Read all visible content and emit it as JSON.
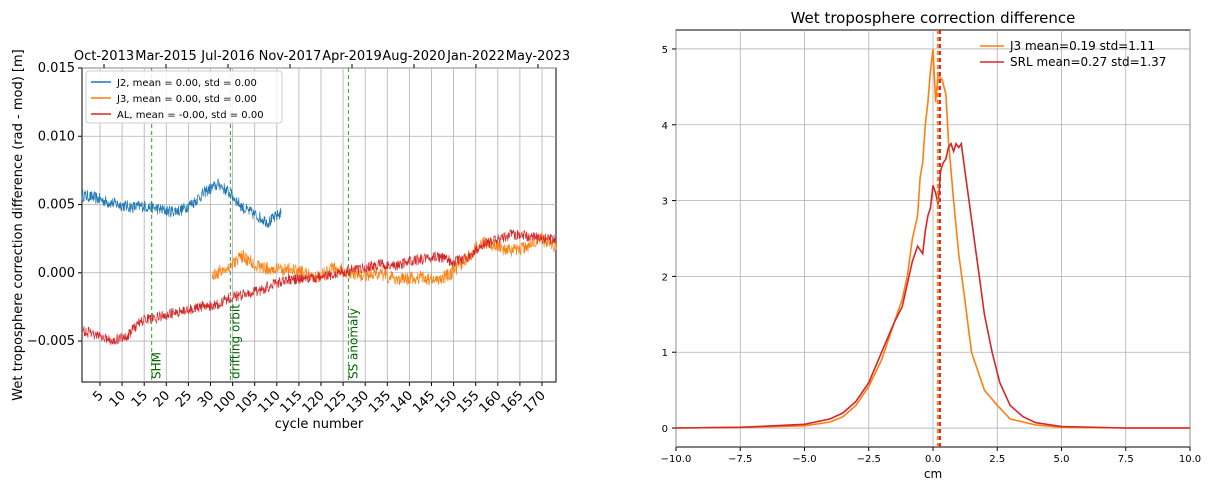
{
  "chart_data": [
    {
      "type": "line",
      "title": "",
      "ylabel": "Wet troposphere correction  difference (rad - mod) [m]",
      "xlabel": "cycle number",
      "ylim": [
        -0.008,
        0.015
      ],
      "grid": true,
      "legend_position": "upper-left",
      "yticks": [
        -0.005,
        0.0,
        0.005,
        0.01,
        0.015
      ],
      "ytick_labels": [
        "−0.005",
        "0.000",
        "0.005",
        "0.010",
        "0.015"
      ],
      "xtick_labels": [
        "5",
        "10",
        "15",
        "20",
        "25",
        "30",
        "100",
        "105",
        "110",
        "115",
        "120",
        "125",
        "130",
        "135",
        "140",
        "145",
        "150",
        "155",
        "160",
        "165",
        "170"
      ],
      "top_tick_labels": [
        "Oct-2013",
        "Mar-2015",
        "Jul-2016",
        "Nov-2017",
        "Apr-2019",
        "Aug-2020",
        "Jan-2022",
        "May-2023"
      ],
      "series": [
        {
          "name": "J2, mean = 0.00, std = 0.00",
          "color": "#1f77b4",
          "x_range": [
            0.0,
            0.42
          ],
          "values": [
            0.0057,
            0.0055,
            0.0052,
            0.005,
            0.0048,
            0.0049,
            0.0047,
            0.0045,
            0.0046,
            0.0052,
            0.006,
            0.0065,
            0.0057,
            0.0047,
            0.0042,
            0.0037,
            0.0044
          ]
        },
        {
          "name": "J3, mean = 0.00, std = 0.00",
          "color": "#ff7f0e",
          "x_range": [
            0.275,
            1.0
          ],
          "values": [
            -0.0002,
            0.0004,
            0.0012,
            0.0005,
            0.0002,
            0.0003,
            0.0,
            -0.0003,
            0.0004,
            0.0001,
            -0.0002,
            0.0,
            -0.0004,
            -0.0005,
            -0.0003,
            -0.0006,
            0.0,
            0.001,
            0.0022,
            0.002,
            0.0015,
            0.0019,
            0.0025,
            0.0018
          ]
        },
        {
          "name": "AL, mean = -0.00, std = 0.00",
          "color": "#d62728",
          "x_range": [
            0.0,
            1.0
          ],
          "values": [
            -0.0042,
            -0.0046,
            -0.0049,
            -0.0047,
            -0.0035,
            -0.0033,
            -0.003,
            -0.0028,
            -0.0025,
            -0.0024,
            -0.0018,
            -0.0016,
            -0.0013,
            -0.0008,
            -0.0005,
            -0.0004,
            -0.0003,
            -0.0001,
            0.0002,
            0.0004,
            0.0006,
            0.0005,
            0.0008,
            0.001,
            0.0012,
            0.0008,
            0.0011,
            0.002,
            0.0024,
            0.0028,
            0.0027,
            0.0025,
            0.0024
          ]
        }
      ],
      "annotations": [
        {
          "label": "SHM",
          "x_frac": 0.147
        },
        {
          "label": "drifting orbit",
          "x_frac": 0.313
        },
        {
          "label": "SS anomaly",
          "x_frac": 0.562
        }
      ]
    },
    {
      "type": "line",
      "title": "Wet troposphere correction difference",
      "xlabel": "cm",
      "ylabel": "",
      "xlim": [
        -10.0,
        10.0
      ],
      "ylim": [
        -0.25,
        5.25
      ],
      "grid": true,
      "legend_position": "upper-right",
      "xtick_labels": [
        "−10.0",
        "−7.5",
        "−5.0",
        "−2.5",
        "0.0",
        "2.5",
        "5.0",
        "7.5",
        "10.0"
      ],
      "ytick_labels": [
        "0",
        "1",
        "2",
        "3",
        "4",
        "5"
      ],
      "series": [
        {
          "name": "J3  mean=0.19 std=1.11",
          "color": "#ff7f0e",
          "mean": 0.19,
          "points": [
            [
              -10,
              0
            ],
            [
              -7.5,
              0.01
            ],
            [
              -5,
              0.03
            ],
            [
              -4,
              0.08
            ],
            [
              -3.5,
              0.15
            ],
            [
              -3,
              0.3
            ],
            [
              -2.5,
              0.55
            ],
            [
              -2,
              0.9
            ],
            [
              -1.5,
              1.4
            ],
            [
              -1.2,
              1.7
            ],
            [
              -1.0,
              2.0
            ],
            [
              -0.8,
              2.5
            ],
            [
              -0.6,
              2.8
            ],
            [
              -0.5,
              3.3
            ],
            [
              -0.4,
              3.5
            ],
            [
              -0.3,
              4.0
            ],
            [
              -0.2,
              4.3
            ],
            [
              -0.1,
              4.7
            ],
            [
              0.0,
              5.0
            ],
            [
              0.1,
              4.3
            ],
            [
              0.2,
              4.65
            ],
            [
              0.35,
              4.6
            ],
            [
              0.5,
              4.4
            ],
            [
              0.6,
              3.8
            ],
            [
              0.7,
              3.4
            ],
            [
              0.8,
              3.0
            ],
            [
              1.0,
              2.3
            ],
            [
              1.2,
              1.8
            ],
            [
              1.5,
              1.0
            ],
            [
              2.0,
              0.5
            ],
            [
              2.5,
              0.3
            ],
            [
              3,
              0.12
            ],
            [
              4,
              0.04
            ],
            [
              5,
              0.01
            ],
            [
              7.5,
              0
            ],
            [
              10,
              0
            ]
          ]
        },
        {
          "name": "SRL mean=0.27 std=1.37",
          "color": "#d62728",
          "mean": 0.27,
          "points": [
            [
              -10,
              0
            ],
            [
              -7.5,
              0.01
            ],
            [
              -5,
              0.05
            ],
            [
              -4,
              0.12
            ],
            [
              -3.5,
              0.2
            ],
            [
              -3,
              0.35
            ],
            [
              -2.5,
              0.6
            ],
            [
              -2,
              1.0
            ],
            [
              -1.5,
              1.4
            ],
            [
              -1.2,
              1.6
            ],
            [
              -1.0,
              1.9
            ],
            [
              -0.8,
              2.2
            ],
            [
              -0.6,
              2.4
            ],
            [
              -0.4,
              2.3
            ],
            [
              -0.3,
              2.6
            ],
            [
              -0.2,
              2.8
            ],
            [
              -0.1,
              2.9
            ],
            [
              0.0,
              3.2
            ],
            [
              0.1,
              3.1
            ],
            [
              0.2,
              2.95
            ],
            [
              0.3,
              3.4
            ],
            [
              0.4,
              3.5
            ],
            [
              0.5,
              3.55
            ],
            [
              0.6,
              3.7
            ],
            [
              0.7,
              3.75
            ],
            [
              0.8,
              3.65
            ],
            [
              0.9,
              3.75
            ],
            [
              1.0,
              3.7
            ],
            [
              1.1,
              3.75
            ],
            [
              1.2,
              3.5
            ],
            [
              1.4,
              3.0
            ],
            [
              1.6,
              2.5
            ],
            [
              1.8,
              2.0
            ],
            [
              2.0,
              1.5
            ],
            [
              2.3,
              1.0
            ],
            [
              2.6,
              0.6
            ],
            [
              3,
              0.3
            ],
            [
              3.5,
              0.15
            ],
            [
              4,
              0.07
            ],
            [
              5,
              0.02
            ],
            [
              7.5,
              0
            ],
            [
              10,
              0
            ]
          ]
        }
      ]
    }
  ]
}
